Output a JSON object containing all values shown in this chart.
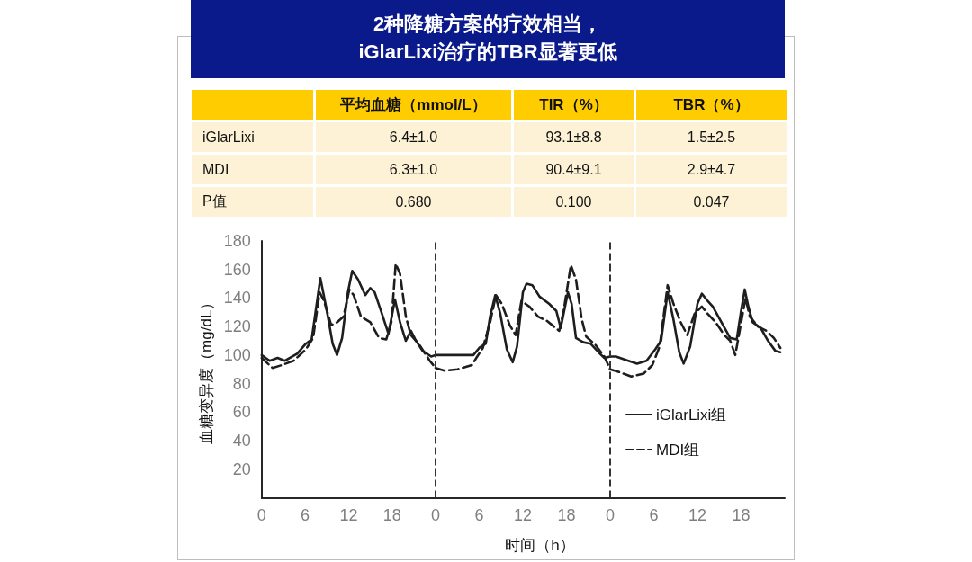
{
  "chart_data": [
    {
      "type": "other",
      "title": "2种降糖方案的疗效相当，\niGlarLixi治疗的TBR显著更低",
      "categories": [
        "平均血糖（mmol/L）",
        "TIR（%）",
        "TBR（%）"
      ],
      "y_categories": [
        "iGlarLixi",
        "MDI",
        "P值"
      ],
      "cell_labels": [
        [
          "6.4±1.0",
          "93.1±8.8",
          "1.5±2.5"
        ],
        [
          "6.3±1.0",
          "90.4±9.1",
          "2.9±4.7"
        ],
        [
          "0.680",
          "0.100",
          "0.047"
        ]
      ]
    },
    {
      "type": "line",
      "ylabel": "血糖变异度（mg/dL）",
      "xlim": [
        0,
        24
      ],
      "ylim": [
        0,
        180
      ],
      "xticks": [
        0,
        6,
        12,
        18
      ],
      "yticks": [
        20,
        40,
        60,
        80,
        100,
        120,
        140,
        160,
        180
      ],
      "grid": false,
      "marker": "none",
      "series": [
        {
          "color": "#1e1e1e",
          "line_style": "solid",
          "x": [
            0,
            1.1,
            2.2,
            3.2,
            4.9,
            6.1,
            6.9,
            8.1,
            9.0,
            9.8,
            10.4,
            11.1,
            11.9,
            12.5,
            13.3,
            14.3,
            15.0,
            15.6,
            16.6,
            17.5,
            18.4,
            19.1,
            19.9,
            20.6,
            21.2,
            22.2,
            23.4,
            24
          ],
          "values": [
            100,
            96,
            98,
            96,
            101,
            108,
            111,
            154,
            131,
            108,
            100,
            112,
            144,
            159,
            153,
            142,
            147,
            144,
            129,
            115,
            139,
            123,
            110,
            117,
            111,
            103,
            99,
            100
          ]
        },
        {
          "color": "#1e1e1e",
          "line_style": "dashed",
          "x": [
            0,
            1.5,
            2.8,
            4.4,
            6.1,
            7.1,
            8.0,
            8.6,
            9.6,
            10.4,
            11.3,
            12.1,
            12.7,
            13.7,
            15.0,
            16.2,
            17.2,
            17.9,
            18.5,
            19.1,
            19.9,
            20.6,
            21.8,
            23.2,
            24
          ],
          "values": [
            98,
            91,
            93,
            96,
            104,
            112,
            144,
            138,
            121,
            123,
            127,
            146,
            142,
            127,
            123,
            112,
            111,
            123,
            164,
            157,
            127,
            114,
            107,
            96,
            91
          ]
        }
      ]
    },
    {
      "type": "line",
      "xlabel": "时间（h）",
      "xlim": [
        0,
        24
      ],
      "ylim": [
        0,
        180
      ],
      "xticks": [
        0,
        6,
        12,
        18
      ],
      "grid": false,
      "marker": "none",
      "tick_labels": "x",
      "series": [
        {
          "color": "#1e1e1e",
          "line_style": "solid",
          "x": [
            0,
            2.1,
            3.8,
            5.2,
            6.0,
            6.9,
            7.5,
            8.2,
            8.9,
            9.8,
            10.6,
            11.2,
            12.0,
            12.5,
            13.3,
            14.3,
            15.6,
            16.6,
            17.2,
            18.2,
            18.7,
            19.3,
            20.3,
            21.3,
            22.4,
            23.2,
            24
          ],
          "values": [
            100,
            100,
            100,
            100,
            105,
            108,
            127,
            142,
            129,
            104,
            95,
            106,
            144,
            150,
            149,
            141,
            136,
            131,
            119,
            144,
            136,
            112,
            109,
            108,
            102,
            98,
            99
          ]
        },
        {
          "color": "#1e1e1e",
          "line_style": "dashed",
          "x": [
            0,
            1.3,
            3.0,
            5.0,
            5.6,
            6.5,
            7.5,
            8.3,
            9.1,
            10.2,
            11.0,
            11.8,
            12.9,
            14.1,
            15.3,
            17.0,
            17.6,
            18.6,
            19.3,
            20.1,
            20.7,
            22.0,
            23.2,
            24
          ],
          "values": [
            91,
            89,
            90,
            93,
            98,
            105,
            123,
            142,
            136,
            121,
            114,
            138,
            134,
            127,
            124,
            117,
            131,
            163,
            153,
            125,
            113,
            107,
            99,
            90
          ]
        }
      ],
      "ref_lines": [
        {
          "axis": "x",
          "value": 0,
          "line_style": "dashed",
          "color": "#333333"
        }
      ]
    },
    {
      "type": "line",
      "xlim": [
        0,
        24
      ],
      "ylim": [
        0,
        180
      ],
      "xticks": [
        0,
        6,
        12,
        18
      ],
      "grid": false,
      "legend": "bottom left",
      "marker": "none",
      "tick_labels": "x",
      "series": [
        {
          "name": "iGlarLixi组",
          "color": "#1e1e1e",
          "line_style": "solid",
          "x": [
            0,
            0.8,
            2.5,
            3.7,
            5.0,
            6.2,
            7.0,
            7.9,
            8.7,
            9.5,
            10.1,
            11.0,
            12.0,
            12.6,
            13.4,
            14.1,
            15.3,
            16.5,
            17.4,
            18.0,
            18.5,
            19.0,
            19.6,
            20.7,
            21.7,
            22.7,
            23.4
          ],
          "values": [
            99,
            99,
            96,
            94,
            96,
            104,
            110,
            144,
            125,
            102,
            94,
            106,
            136,
            143,
            138,
            134,
            123,
            112,
            111,
            131,
            146,
            134,
            123,
            119,
            110,
            103,
            102
          ]
        },
        {
          "name": "MDI组",
          "color": "#1e1e1e",
          "line_style": "dashed",
          "x": [
            0,
            1.3,
            2.9,
            4.6,
            5.8,
            6.8,
            7.9,
            8.7,
            9.7,
            10.6,
            11.6,
            12.6,
            13.4,
            14.5,
            15.7,
            16.5,
            17.2,
            17.8,
            18.6,
            19.2,
            20.3,
            21.5,
            22.5,
            23.4
          ],
          "values": [
            90,
            88,
            85,
            87,
            93,
            106,
            149,
            136,
            123,
            114,
            129,
            134,
            129,
            123,
            114,
            110,
            100,
            117,
            140,
            127,
            120,
            117,
            112,
            105
          ]
        }
      ],
      "ref_lines": [
        {
          "axis": "x",
          "value": 0,
          "line_style": "dashed",
          "color": "#333333"
        }
      ]
    }
  ]
}
